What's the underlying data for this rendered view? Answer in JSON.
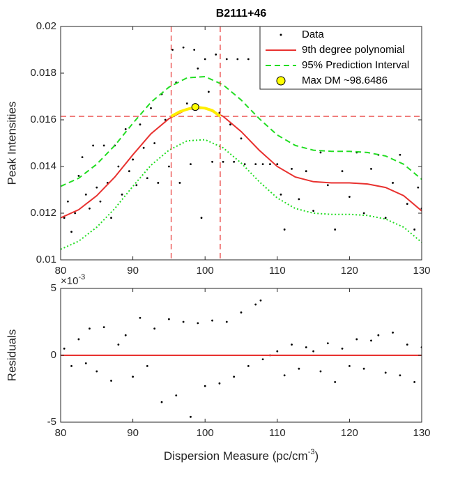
{
  "chart_data": [
    {
      "type": "scatter",
      "title": "B2111+46",
      "ylabel": "Peak Intensities",
      "xlim": [
        80,
        130
      ],
      "ylim": [
        0.01,
        0.02
      ],
      "xticks": [
        80,
        90,
        100,
        110,
        120,
        130
      ],
      "yticks": [
        0.01,
        0.012,
        0.014,
        0.016,
        0.018,
        0.02
      ],
      "legend_position": "upper right",
      "series": [
        {
          "name": "Data",
          "color": "#000000",
          "style": "markers",
          "x": [
            80.5,
            81,
            81.5,
            82,
            82.5,
            83,
            83.5,
            84,
            84.5,
            85,
            85.5,
            86,
            86.5,
            87,
            87.5,
            88,
            88.5,
            89,
            89.5,
            90,
            90.5,
            91,
            91.5,
            92,
            92.5,
            93,
            93.5,
            94,
            94.5,
            95,
            95.5,
            96,
            96.5,
            97,
            97.5,
            98,
            98.5,
            99,
            99.5,
            100,
            100.5,
            101,
            101.5,
            102,
            102.5,
            103,
            103.5,
            104,
            104.5,
            105,
            105.5,
            106,
            107,
            108,
            109,
            110,
            110.5,
            111,
            112,
            113,
            114,
            115,
            116,
            117,
            118,
            119,
            120,
            121,
            122,
            123,
            124,
            125,
            126,
            127,
            128,
            129,
            129.5,
            130
          ],
          "values": [
            0.0118,
            0.0125,
            0.0112,
            0.012,
            0.0136,
            0.0144,
            0.0128,
            0.0122,
            0.0149,
            0.0131,
            0.0125,
            0.0149,
            0.0133,
            0.0118,
            0.0149,
            0.014,
            0.0128,
            0.0156,
            0.0138,
            0.0143,
            0.0132,
            0.0158,
            0.0148,
            0.0135,
            0.0165,
            0.015,
            0.0133,
            0.0171,
            0.016,
            0.014,
            0.019,
            0.0176,
            0.0133,
            0.0191,
            0.0167,
            0.0141,
            0.019,
            0.0182,
            0.0118,
            0.0186,
            0.0172,
            0.0142,
            0.0188,
            0.0163,
            0.0142,
            0.0186,
            0.0158,
            0.0142,
            0.0186,
            0.0152,
            0.0141,
            0.0186,
            0.0141,
            0.0141,
            0.0141,
            0.0141,
            0.0128,
            0.0113,
            0.0139,
            0.0126,
            0.0138,
            0.0121,
            0.0146,
            0.0132,
            0.0113,
            0.0138,
            0.0127,
            0.0146,
            0.012,
            0.0139,
            0.0145,
            0.0118,
            0.0133,
            0.0145,
            0.0124,
            0.0113,
            0.0131,
            0.0122
          ]
        },
        {
          "name": "9th degree polynomial",
          "color": "#e8312f",
          "style": "solid",
          "x": [
            80,
            82.5,
            85,
            87.5,
            90,
            92.5,
            95,
            97.5,
            100,
            102.5,
            105,
            107.5,
            110,
            112.5,
            115,
            117.5,
            120,
            122.5,
            125,
            127.5,
            130
          ],
          "values": [
            0.0118,
            0.01215,
            0.01275,
            0.01355,
            0.0145,
            0.0154,
            0.01605,
            0.01645,
            0.0165,
            0.01615,
            0.0155,
            0.0147,
            0.014,
            0.01355,
            0.01335,
            0.0133,
            0.0133,
            0.01325,
            0.0131,
            0.01275,
            0.0121
          ]
        },
        {
          "name": "95% Prediction Interval",
          "color": "#22dd22",
          "style": "dashed",
          "lower_style": "dotted",
          "x": [
            80,
            82.5,
            85,
            87.5,
            90,
            92.5,
            95,
            97.5,
            100,
            102.5,
            105,
            107.5,
            110,
            112.5,
            115,
            117.5,
            120,
            122.5,
            125,
            127.5,
            130
          ],
          "values": [
            0.01315,
            0.0135,
            0.0141,
            0.0149,
            0.01585,
            0.01675,
            0.0174,
            0.0178,
            0.01785,
            0.0175,
            0.01685,
            0.01605,
            0.01535,
            0.0149,
            0.0147,
            0.01465,
            0.01465,
            0.0146,
            0.01445,
            0.0141,
            0.01345
          ],
          "lower": [
            0.01045,
            0.0108,
            0.0114,
            0.0122,
            0.01315,
            0.01405,
            0.0147,
            0.0151,
            0.01515,
            0.0148,
            0.01415,
            0.01335,
            0.01265,
            0.0122,
            0.012,
            0.01195,
            0.01195,
            0.0119,
            0.01175,
            0.0114,
            0.01075
          ]
        },
        {
          "name": "Max DM ~98.6486",
          "color": "#ffff00",
          "style": "circle",
          "x": [
            98.6486
          ],
          "values": [
            0.01655
          ]
        }
      ],
      "peak_segment": {
        "color": "#ffee00",
        "x": [
          95.3,
          96.5,
          97.5,
          98.6486,
          100,
          101,
          102.1
        ],
        "values": [
          0.01615,
          0.01635,
          0.01645,
          0.01655,
          0.0165,
          0.0164,
          0.01615
        ]
      },
      "reference_lines": {
        "color": "#e8312f",
        "x": [
          95.3,
          102.1
        ],
        "y": [
          0.01615
        ]
      }
    },
    {
      "type": "scatter",
      "ylabel": "Residuals",
      "xlabel": {
        "text": "Dispersion Measure (pc/cm",
        "sup": "-3",
        "end": ")"
      },
      "y_exponent": {
        "base": "×10",
        "power": "-3"
      },
      "xlim": [
        80,
        130
      ],
      "ylim": [
        -0.005,
        0.005
      ],
      "xticks": [
        80,
        90,
        100,
        110,
        120,
        130
      ],
      "yticks": [
        {
          "value": -0.005,
          "label": "-5"
        },
        {
          "value": 0,
          "label": "0"
        },
        {
          "value": 0.005,
          "label": "5"
        }
      ],
      "series": [
        {
          "color": "#000000",
          "style": "markers",
          "x": [
            80.5,
            81.5,
            82.5,
            83.5,
            84,
            85,
            86,
            87,
            88,
            89,
            90,
            91,
            92,
            93,
            94,
            95,
            96,
            97,
            98,
            99,
            100,
            101,
            102,
            103,
            104,
            105,
            106,
            107,
            107.7,
            108,
            109,
            110,
            111,
            112,
            113,
            114,
            115,
            116,
            117,
            118,
            119,
            120,
            121,
            122,
            123,
            124,
            125,
            126,
            127,
            128,
            129,
            130
          ],
          "values": [
            0.0005,
            -0.0008,
            0.0012,
            -0.0006,
            0.002,
            -0.0012,
            0.0021,
            -0.0019,
            0.0008,
            0.0015,
            -0.0016,
            0.0028,
            -0.0008,
            0.002,
            -0.0035,
            0.0027,
            -0.003,
            0.0025,
            -0.0046,
            0.0024,
            -0.0023,
            0.0026,
            -0.0021,
            0.0025,
            -0.0016,
            0.0032,
            -0.0008,
            0.0038,
            0.0041,
            -0.0003,
            0,
            0.0003,
            -0.0015,
            0.0008,
            -0.001,
            0.0006,
            0.0003,
            -0.0012,
            0.0009,
            -0.002,
            0.0005,
            -0.0008,
            0.0012,
            -0.001,
            0.0011,
            0.0015,
            -0.0013,
            0.0017,
            -0.0015,
            0.0008,
            -0.002,
            0.0006
          ]
        },
        {
          "color": "#e8312f",
          "style": "solid",
          "x": [
            80,
            130
          ],
          "values": [
            0,
            0
          ]
        }
      ]
    }
  ]
}
